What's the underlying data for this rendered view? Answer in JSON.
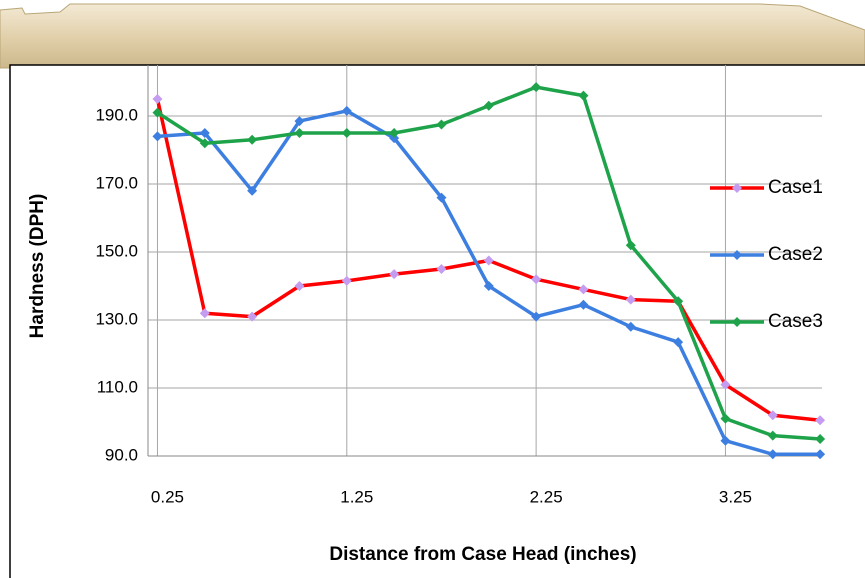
{
  "chart_data": {
    "type": "line",
    "x_label": "Distance from Case Head (inches)",
    "y_label": "Hardness (DPH)",
    "x": [
      0.25,
      0.5,
      0.75,
      1.0,
      1.25,
      1.5,
      1.75,
      2.0,
      2.25,
      2.5,
      2.75,
      3.0,
      3.25,
      3.5,
      3.75
    ],
    "xlim": [
      0.2,
      3.76
    ],
    "xticks": [
      0.25,
      1.25,
      2.25,
      3.25
    ],
    "ylim": [
      90,
      205
    ],
    "yticks": [
      {
        "value": 90,
        "label": "90.0"
      },
      {
        "value": 110,
        "label": "110.0"
      },
      {
        "value": 130,
        "label": "130.0"
      },
      {
        "value": 150,
        "label": "150.0"
      },
      {
        "value": 170,
        "label": "170.0"
      },
      {
        "value": 190,
        "label": "190.0"
      }
    ],
    "grid": true,
    "legend": "right",
    "series": [
      {
        "name": "Case1",
        "color": "#ff0000",
        "marker_color": "#c49cf0",
        "values": [
          195,
          132,
          131,
          140,
          141.5,
          143.5,
          145,
          147.5,
          142,
          139,
          136,
          135.5,
          111,
          102,
          100.5
        ]
      },
      {
        "name": "Case2",
        "color": "#3d7fe0",
        "marker_color": "#3d7fe0",
        "values": [
          184,
          185,
          168,
          188.5,
          191.5,
          183.5,
          166,
          140,
          131,
          134.5,
          128,
          123.5,
          94.5,
          90.5,
          90.5
        ]
      },
      {
        "name": "Case3",
        "color": "#1ea34a",
        "marker_color": "#1ea34a",
        "values": [
          191,
          182,
          183,
          185,
          185,
          185,
          187.5,
          193,
          198.5,
          196,
          152,
          135.5,
          101,
          96,
          95
        ]
      }
    ]
  }
}
